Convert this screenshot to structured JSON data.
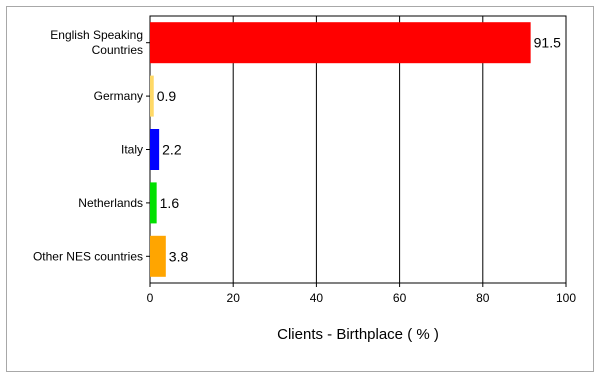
{
  "chart_data": {
    "type": "bar",
    "orientation": "horizontal",
    "title": "",
    "xlabel": "Clients - Birthplace ( % )",
    "ylabel": "",
    "categories": [
      [
        "English Speaking",
        "Countries"
      ],
      [
        "Germany"
      ],
      [
        "Italy"
      ],
      [
        "Netherlands"
      ],
      [
        "Other NES countries"
      ]
    ],
    "values": [
      91.5,
      0.9,
      2.2,
      1.6,
      3.8
    ],
    "value_labels": [
      "91.5",
      "0.9",
      "2.2",
      "1.6",
      "3.8"
    ],
    "colors": [
      "#ff0000",
      "#ffd966",
      "#0000ff",
      "#00e000",
      "#ffa500"
    ],
    "xlim": [
      0,
      100
    ],
    "xticks": [
      "0",
      "20",
      "40",
      "60",
      "80",
      "100"
    ],
    "grid": "vertical",
    "legend": "none"
  }
}
